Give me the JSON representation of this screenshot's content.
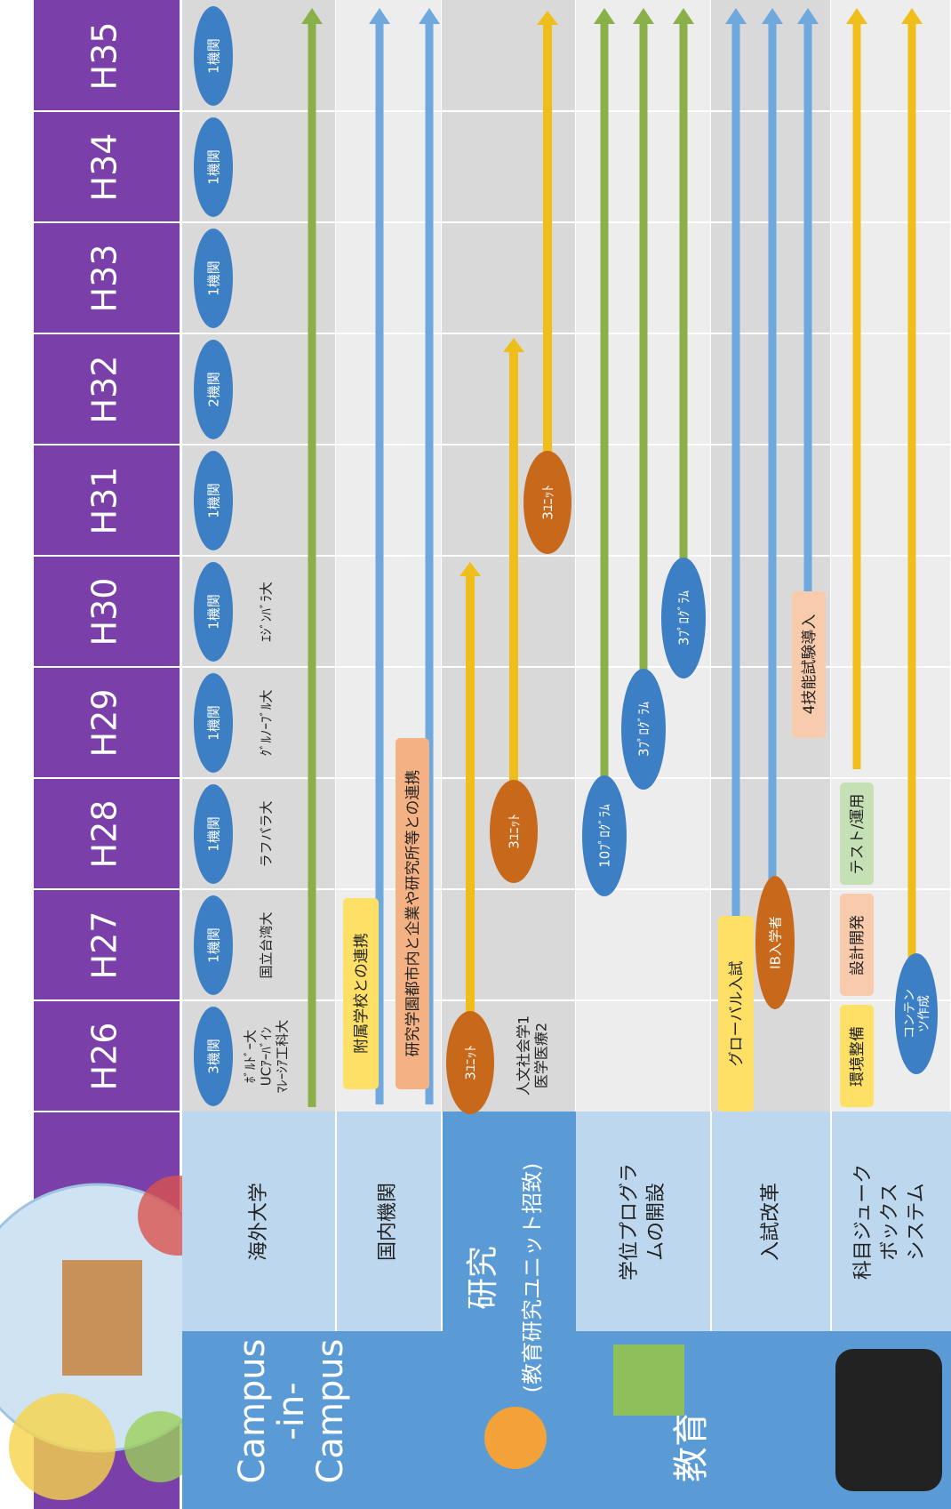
{
  "header": {
    "years": [
      "H26",
      "H27",
      "H28",
      "H29",
      "H30",
      "H31",
      "H32",
      "H33",
      "H34",
      "H35"
    ]
  },
  "groups": {
    "campus": [
      "Campus",
      "-in-",
      "Campus"
    ],
    "research": [
      "研究",
      "(教育研究ユニット招致)"
    ],
    "education": "教育"
  },
  "rows": {
    "overseas": {
      "label": "海外大学",
      "counts": [
        "3機関",
        "1機関",
        "1機関",
        "1機関",
        "1機関",
        "1機関",
        "2機関",
        "1機関",
        "1機関",
        "1機関"
      ],
      "universities": [
        [
          "ﾎﾞﾙﾄﾞｰ大",
          "UCｱｰﾊﾞｲﾝ",
          "ﾏﾚｰｼｱ工科大"
        ],
        [
          "国立台湾大"
        ],
        [
          "ラフバラ大"
        ],
        [
          "ｸﾞﾙﾉｰﾌﾞﾙ大"
        ],
        [
          "ｴｼﾞﾝﾊﾞﾗ大"
        ]
      ]
    },
    "domestic": {
      "label": "国内機関",
      "items": [
        "附属学校との連携",
        "研究学園都市内と企業や研究所等との連携"
      ]
    },
    "research": {
      "units": [
        "3ﾕﾆｯﾄ",
        "3ﾕﾆｯﾄ",
        "3ﾕﾆｯﾄ"
      ],
      "note": [
        "人文社会学1",
        "医学医療2"
      ]
    },
    "degree": {
      "label": [
        "学位プログラ",
        "ムの開設"
      ],
      "programs": [
        "10ﾌﾟﾛｸﾞﾗﾑ",
        "3ﾌﾟﾛｸﾞﾗﾑ",
        "3ﾌﾟﾛｸﾞﾗﾑ"
      ]
    },
    "admission": {
      "label": "入試改革",
      "items": [
        "グローバル入試",
        "IB入学者",
        "4技能試験導入"
      ]
    },
    "jukebox": {
      "label": [
        "科目ジューク",
        "ボックス",
        "システム"
      ],
      "items": [
        "環境整備",
        "設計開発",
        "テスト/運用",
        [
          "コンテン",
          "ツ作成"
        ]
      ]
    }
  }
}
